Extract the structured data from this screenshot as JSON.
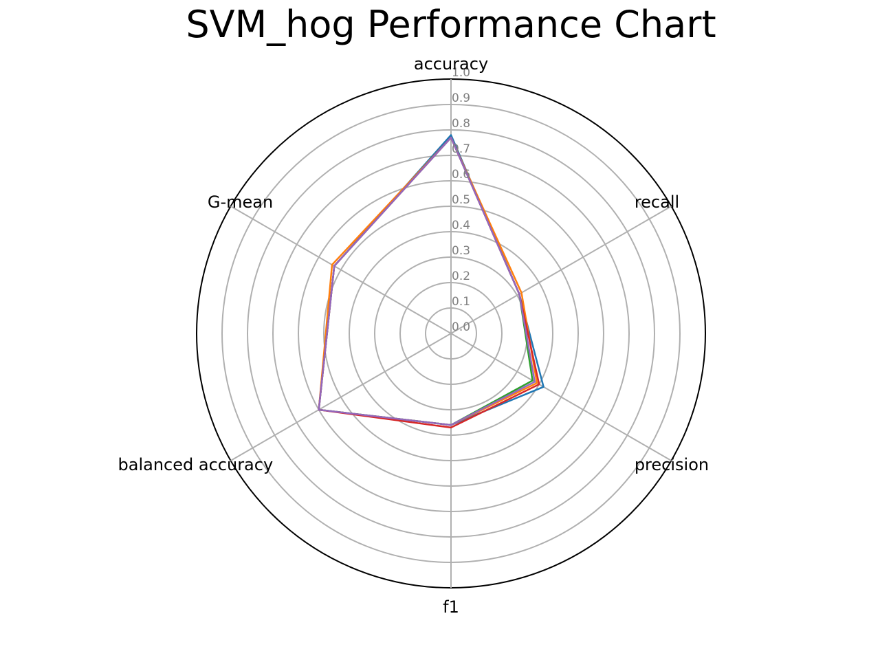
{
  "chart_data": {
    "type": "radar",
    "title": "SVM_hog Performance Chart",
    "axes": [
      "accuracy",
      "recall",
      "precision",
      "f1",
      "balanced accuracy",
      "G-mean"
    ],
    "rlim": [
      0,
      1.0
    ],
    "r_ticks": [
      "0.0",
      "0.1",
      "0.2",
      "0.3",
      "0.4",
      "0.5",
      "0.6",
      "0.7",
      "0.8",
      "0.9",
      "1.0"
    ],
    "grid": true,
    "series": [
      {
        "color": "#1f77b4",
        "values": [
          0.78,
          0.31,
          0.42,
          0.36,
          0.6,
          0.53
        ]
      },
      {
        "color": "#ff7f0e",
        "values": [
          0.77,
          0.32,
          0.39,
          0.36,
          0.6,
          0.54
        ]
      },
      {
        "color": "#2ca02c",
        "values": [
          0.77,
          0.31,
          0.37,
          0.36,
          0.6,
          0.53
        ]
      },
      {
        "color": "#d62728",
        "values": [
          0.77,
          0.31,
          0.4,
          0.37,
          0.6,
          0.53
        ]
      },
      {
        "color": "#9467bd",
        "values": [
          0.77,
          0.31,
          0.38,
          0.36,
          0.6,
          0.53
        ]
      }
    ]
  }
}
